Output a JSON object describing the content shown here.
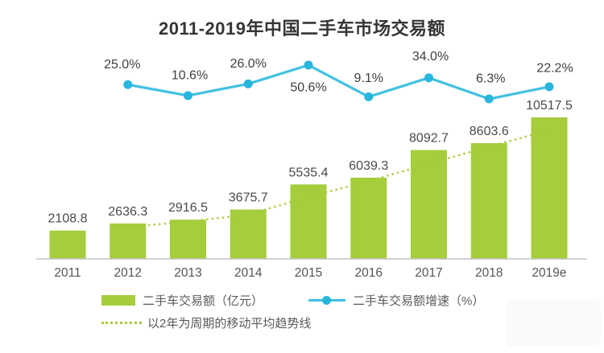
{
  "chart_data": {
    "type": "bar+line",
    "title": "2011-2019年中国二手车市场交易额",
    "categories": [
      "2011",
      "2012",
      "2013",
      "2014",
      "2015",
      "2016",
      "2017",
      "2018",
      "2019e"
    ],
    "bar_series": {
      "name": "二手车交易额（亿元）",
      "type": "bar",
      "color": "#a5cd3c",
      "values": [
        2108.8,
        2636.3,
        2916.5,
        3675.7,
        5535.4,
        6039.3,
        8092.7,
        8603.6,
        10517.5
      ]
    },
    "growth_series": {
      "name": "二手车交易额增速（%）",
      "type": "line",
      "color": "#41c1e2",
      "marker_color": "#29b6dd",
      "start_category": "2012",
      "unit": "%",
      "values": [
        25.0,
        10.6,
        26.0,
        50.6,
        9.1,
        34.0,
        6.3,
        22.2
      ]
    },
    "trend_series": {
      "name": "以2年为周期的移动平均趋势线",
      "type": "moving_average",
      "period": 2,
      "style": "dotted",
      "color": "#a5cd3c"
    },
    "ylim": [
      0,
      11000
    ],
    "grid": false,
    "legend_position": "bottom-left",
    "axis_color": "#c3c3c3",
    "value_label_color": "#4a4a4a",
    "percent_label_color": "#3f3f3f",
    "tick_label_color": "#555555"
  }
}
